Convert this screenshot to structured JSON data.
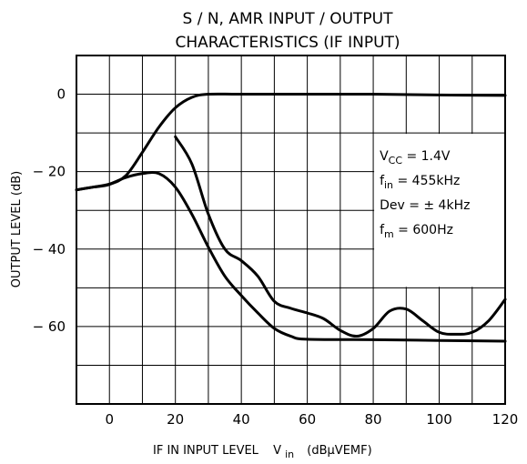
{
  "chart_data": {
    "type": "line",
    "title_line1": "S / N,  AMR  INPUT / OUTPUT",
    "title_line2": "CHARACTERISTICS (IF  INPUT)",
    "xlabel": {
      "main": "IF  IN  INPUT  LEVEL",
      "var": "V",
      "var_sub": "in",
      "unit": "(dBμVEMF)"
    },
    "ylabel": "OUTPUT  LEVEL    (dB)",
    "xlim": [
      -10,
      120
    ],
    "ylim": [
      -80,
      10
    ],
    "x_ticks": [
      0,
      20,
      40,
      60,
      80,
      100,
      120
    ],
    "y_ticks": [
      0,
      -20,
      -40,
      -60
    ],
    "grid": true,
    "conditions": [
      {
        "key": "V",
        "sub": "CC",
        "rest": " = 1.4V"
      },
      {
        "key": "f",
        "sub": "in",
        "rest": " = 455kHz"
      },
      {
        "key": "Dev",
        "sub": "",
        "rest": " = ± 4kHz"
      },
      {
        "key": "f",
        "sub": "m",
        "rest": " = 600Hz"
      }
    ],
    "series": [
      {
        "values": [
          [
            -10,
            -24.7
          ],
          [
            -5,
            -24
          ],
          [
            0,
            -23.3
          ],
          [
            5,
            -21
          ],
          [
            10,
            -15
          ],
          [
            15,
            -8.5
          ],
          [
            20,
            -3.5
          ],
          [
            25,
            -0.8
          ],
          [
            30,
            0
          ],
          [
            40,
            0
          ],
          [
            60,
            0
          ],
          [
            80,
            0
          ],
          [
            100,
            -0.2
          ],
          [
            120,
            -0.3
          ]
        ]
      },
      {
        "values": [
          [
            -10,
            -24.7
          ],
          [
            -5,
            -24
          ],
          [
            0,
            -23.2
          ],
          [
            5,
            -21.5
          ],
          [
            10,
            -20.5
          ],
          [
            15,
            -20.5
          ],
          [
            20,
            -24
          ],
          [
            25,
            -31
          ],
          [
            30,
            -39.5
          ],
          [
            35,
            -47
          ],
          [
            40,
            -52
          ],
          [
            45,
            -56.5
          ],
          [
            50,
            -60.5
          ],
          [
            55,
            -62.5
          ],
          [
            60,
            -63.3
          ],
          [
            80,
            -63.4
          ],
          [
            100,
            -63.6
          ],
          [
            120,
            -63.8
          ]
        ]
      },
      {
        "values": [
          [
            20,
            -11
          ],
          [
            25,
            -18
          ],
          [
            30,
            -31
          ],
          [
            35,
            -40
          ],
          [
            40,
            -43
          ],
          [
            45,
            -47
          ],
          [
            50,
            -53.5
          ],
          [
            55,
            -55.3
          ],
          [
            60,
            -56.5
          ],
          [
            65,
            -58
          ],
          [
            70,
            -61
          ],
          [
            75,
            -62.5
          ],
          [
            80,
            -60.5
          ],
          [
            85,
            -56
          ],
          [
            90,
            -55.5
          ],
          [
            95,
            -58.5
          ],
          [
            100,
            -61.5
          ],
          [
            105,
            -62
          ],
          [
            110,
            -61.5
          ],
          [
            115,
            -58.5
          ],
          [
            120,
            -53
          ]
        ]
      }
    ]
  }
}
